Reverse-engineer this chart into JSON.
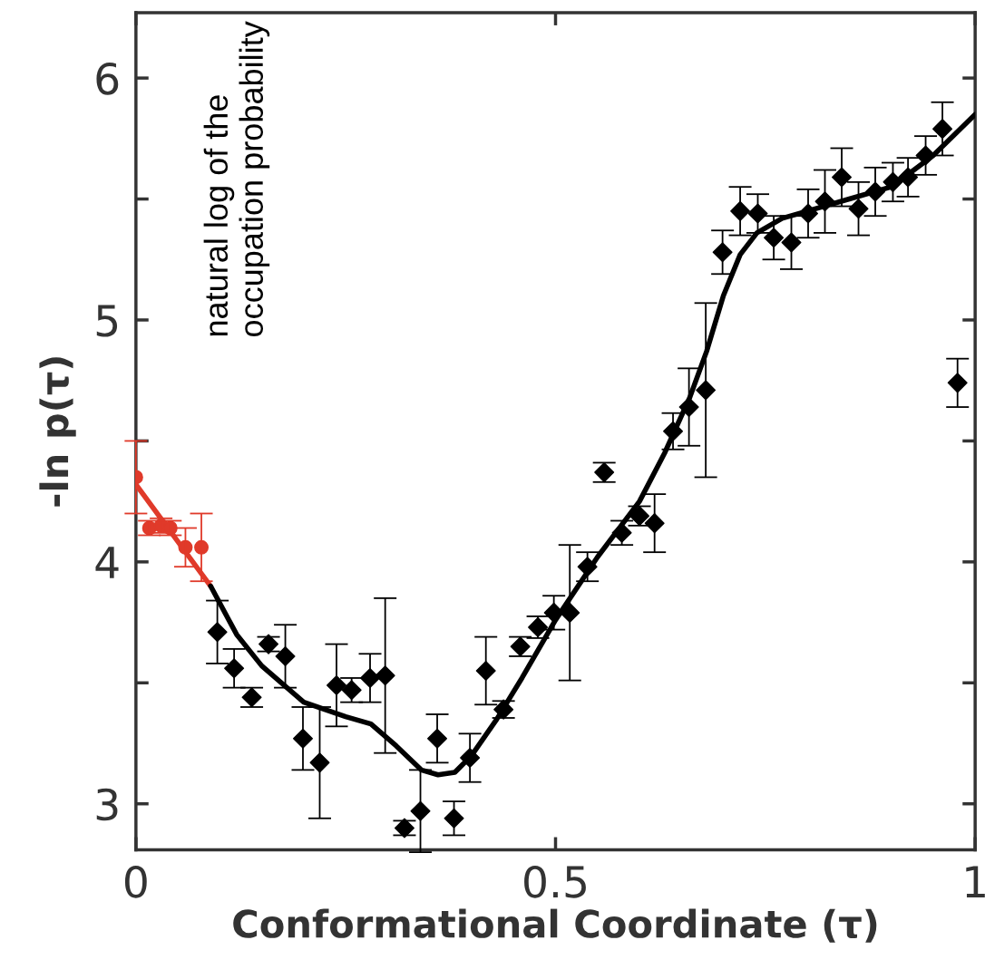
{
  "chart_data": {
    "type": "scatter",
    "xlabel": "Conformational Coordinate (τ)",
    "ylabel": "-ln p(τ)",
    "xlim": [
      0,
      1
    ],
    "ylim": [
      2.81,
      6.27
    ],
    "xticks": [
      0,
      0.5,
      1
    ],
    "yticks": [
      3,
      {
        "value": 3.5,
        "label": null
      },
      4,
      {
        "value": 4.5,
        "label": null
      },
      5,
      {
        "value": 5.5,
        "label": null
      },
      6
    ],
    "grid": false,
    "legend": false,
    "annotations": [
      "natural log of the\noccupation probability"
    ],
    "series": [
      {
        "type": "line",
        "color": "#e03a2a",
        "x": [
          0,
          0.089
        ],
        "values": [
          4.32,
          3.9
        ],
        "line_style": "solid",
        "marker": "none"
      },
      {
        "color": "#e03a2a",
        "marker": "circle",
        "x": [
          0,
          0.016,
          0.03,
          0.041,
          0.059,
          0.078
        ],
        "values": [
          4.35,
          4.14,
          4.15,
          4.14,
          4.06,
          4.06
        ],
        "errors": [
          0.15,
          0.03,
          0.03,
          0.03,
          0.08,
          0.14
        ]
      },
      {
        "type": "line",
        "color": "#000000",
        "line_style": "solid",
        "marker": "none",
        "x": [
          0.089,
          0.12,
          0.15,
          0.2,
          0.25,
          0.28,
          0.31,
          0.34,
          0.36,
          0.38,
          0.4,
          0.43,
          0.46,
          0.5,
          0.55,
          0.6,
          0.63,
          0.66,
          0.68,
          0.7,
          0.72,
          0.74,
          0.77,
          0.8,
          0.85,
          0.9,
          0.95,
          1
        ],
        "values": [
          3.9,
          3.7,
          3.57,
          3.42,
          3.36,
          3.33,
          3.24,
          3.14,
          3.12,
          3.13,
          3.2,
          3.35,
          3.52,
          3.76,
          4.02,
          4.25,
          4.45,
          4.68,
          4.87,
          5.1,
          5.27,
          5.36,
          5.42,
          5.45,
          5.5,
          5.55,
          5.68,
          5.85
        ]
      },
      {
        "color": "#000000",
        "marker": "diamond",
        "x": [
          0.097,
          0.117,
          0.138,
          0.158,
          0.178,
          0.199,
          0.219,
          0.239,
          0.257,
          0.279,
          0.297,
          0.32,
          0.339,
          0.359,
          0.379,
          0.398,
          0.417,
          0.438,
          0.458,
          0.479,
          0.498,
          0.517,
          0.538,
          0.558,
          0.579,
          0.6,
          0.618,
          0.64,
          0.659,
          0.679,
          0.699,
          0.72,
          0.741,
          0.76,
          0.781,
          0.801,
          0.821,
          0.841,
          0.861,
          0.881,
          0.902,
          0.92,
          0.941,
          0.961,
          0.979
        ],
        "values": [
          3.71,
          3.56,
          3.44,
          3.66,
          3.61,
          3.27,
          3.17,
          3.49,
          3.47,
          3.52,
          3.53,
          2.9,
          2.97,
          3.27,
          2.94,
          3.19,
          3.55,
          3.39,
          3.65,
          3.73,
          3.79,
          3.79,
          3.98,
          4.37,
          4.12,
          4.19,
          4.16,
          4.54,
          4.64,
          4.71,
          5.28,
          5.45,
          5.44,
          5.34,
          5.32,
          5.44,
          5.49,
          5.59,
          5.46,
          5.53,
          5.57,
          5.59,
          5.68,
          5.79,
          4.74
        ],
        "errors": [
          0.13,
          0.08,
          0.04,
          0.03,
          0.13,
          0.13,
          0.23,
          0.17,
          0.05,
          0.1,
          0.32,
          0.03,
          0.17,
          0.1,
          0.07,
          0.1,
          0.14,
          0.035,
          0.04,
          0.045,
          0.07,
          0.28,
          0.06,
          0.04,
          0.05,
          0.04,
          0.12,
          0.075,
          0.16,
          0.36,
          0.09,
          0.1,
          0.08,
          0.09,
          0.11,
          0.1,
          0.13,
          0.12,
          0.11,
          0.1,
          0.08,
          0.08,
          0.08,
          0.11,
          0.1
        ]
      }
    ]
  }
}
